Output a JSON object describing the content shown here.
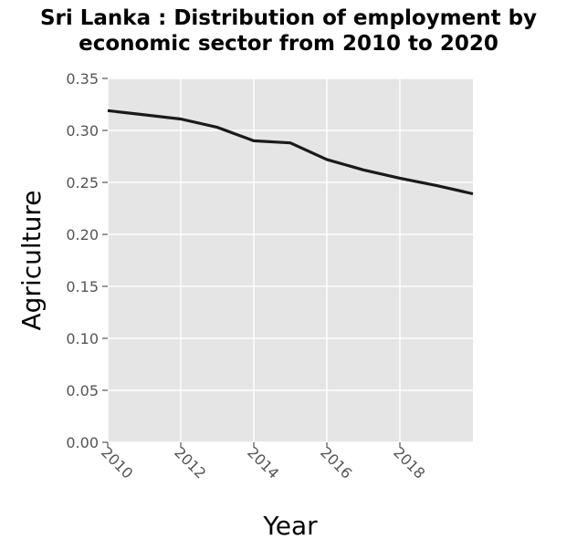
{
  "chart_data": {
    "type": "line",
    "title_lines": [
      "Sri Lanka : Distribution of employment by",
      "economic sector from 2010 to 2020"
    ],
    "xlabel": "Year",
    "ylabel": "Agriculture",
    "xlim": [
      2010,
      2020
    ],
    "ylim": [
      0,
      0.35
    ],
    "x_ticks": [
      2010,
      2012,
      2014,
      2016,
      2018
    ],
    "x_tick_labels": [
      "2010",
      "2012",
      "2014",
      "2016",
      "2018"
    ],
    "y_ticks": [
      0,
      0.05,
      0.1,
      0.15,
      0.2,
      0.25,
      0.3,
      0.35
    ],
    "y_tick_labels": [
      "0.00",
      "0.05",
      "0.10",
      "0.15",
      "0.20",
      "0.25",
      "0.30",
      "0.35"
    ],
    "grid": true,
    "colors": {
      "panel": "#e5e5e5",
      "grid": "#ffffff",
      "line": "#1a1a1a",
      "tick": "#555555"
    },
    "series": [
      {
        "x": [
          2010,
          2011,
          2012,
          2013,
          2014,
          2015,
          2016,
          2017,
          2018,
          2019,
          2020
        ],
        "values": [
          0.319,
          0.315,
          0.311,
          0.303,
          0.29,
          0.288,
          0.272,
          0.262,
          0.254,
          0.247,
          0.239
        ]
      }
    ]
  }
}
